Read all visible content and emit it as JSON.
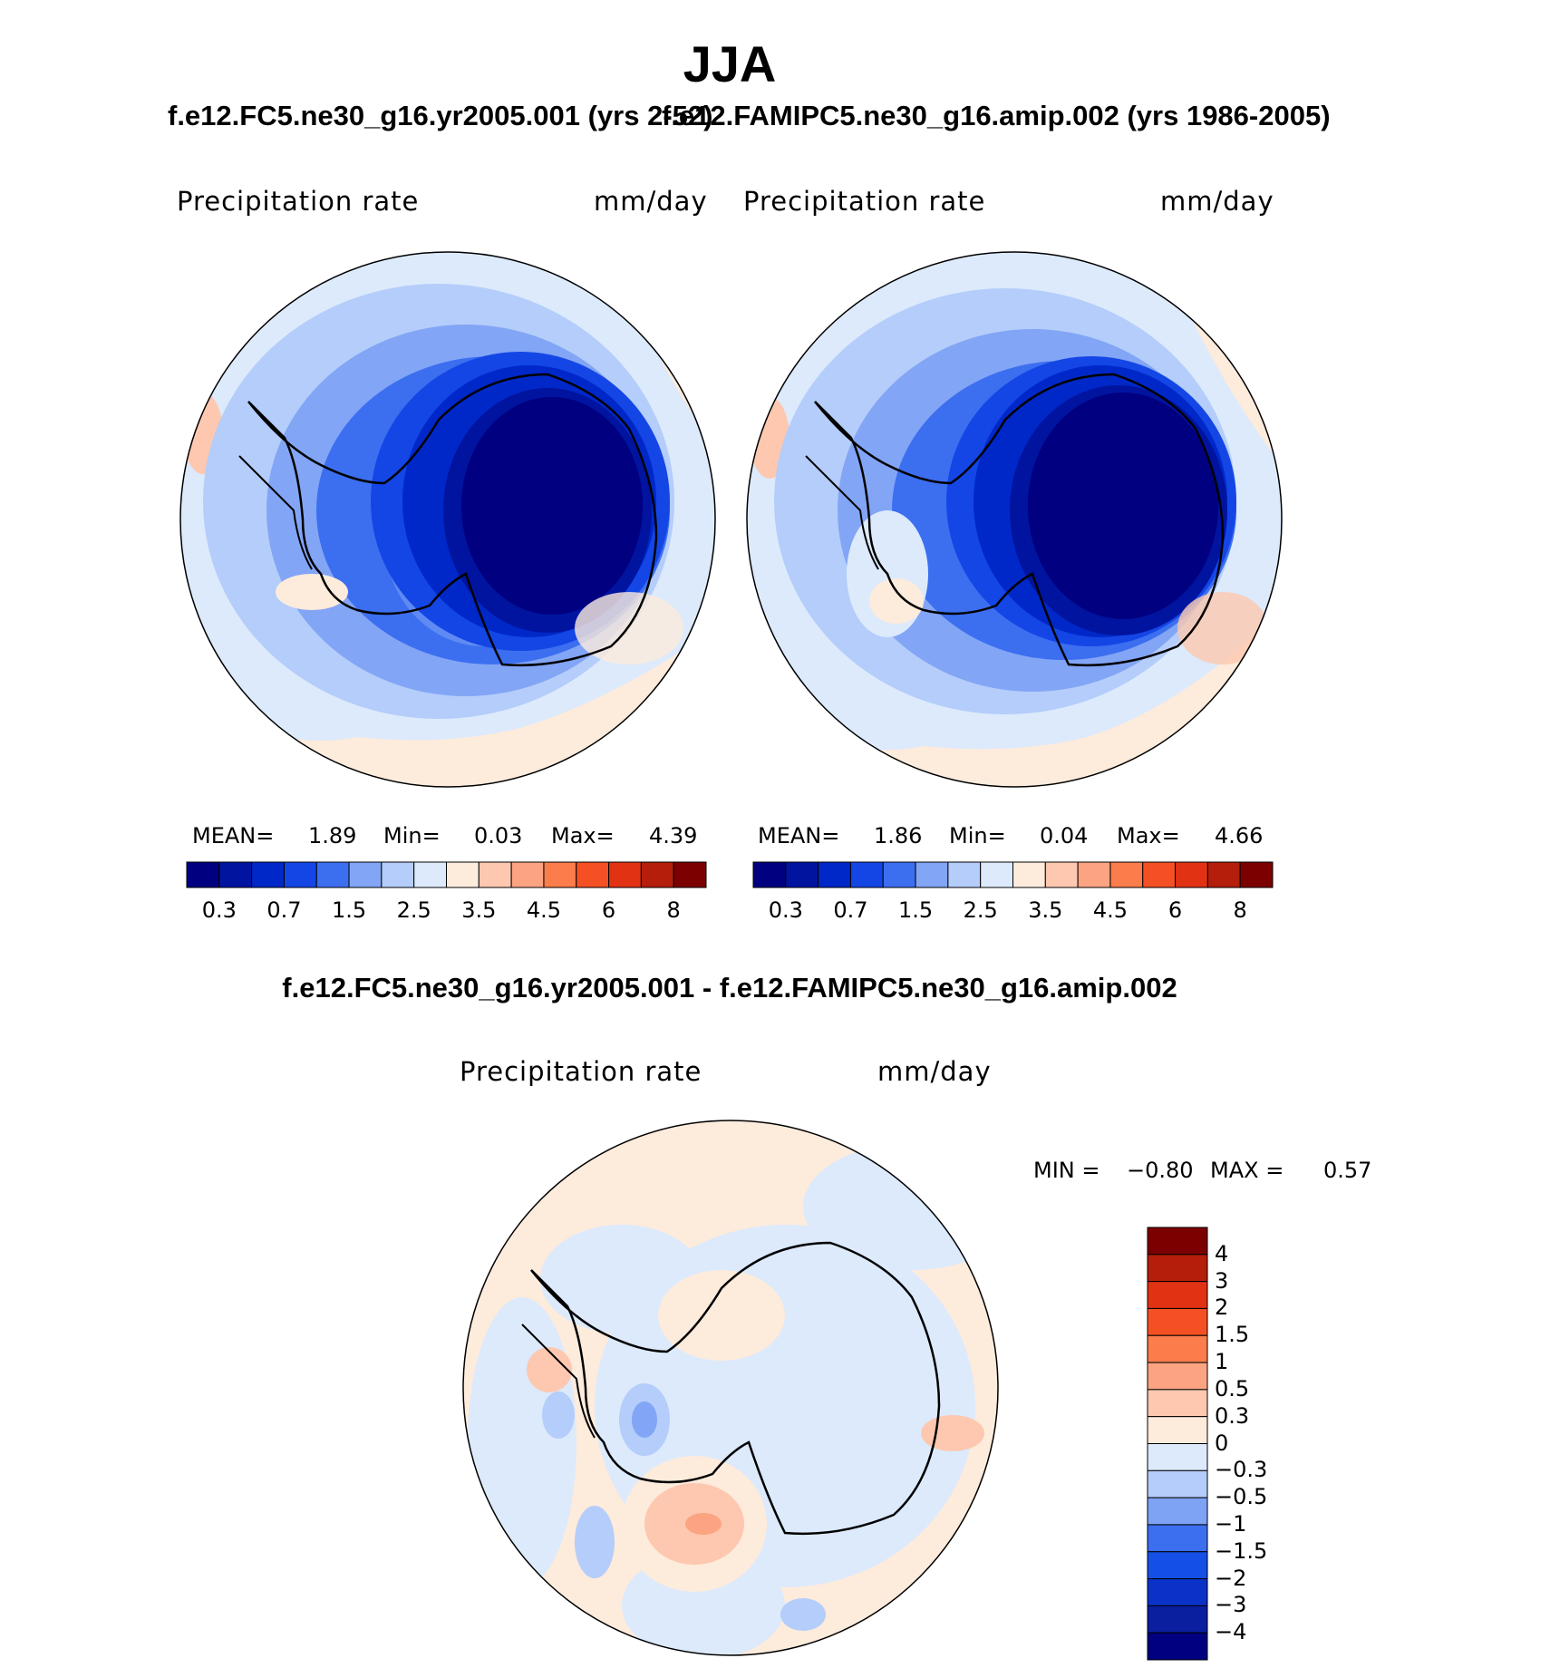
{
  "figure": {
    "title": "JJA",
    "variable": "Precipitation rate",
    "units": "mm/day",
    "coastline_color": "#000000"
  },
  "panels": [
    {
      "id": "test",
      "case_title": "f.e12.FC5.ne30_g16.yr2005.001 (yrs 2-52)",
      "mean_label": "MEAN=",
      "mean": "1.89",
      "min_label": "Min=",
      "min": "0.03",
      "max_label": "Max=",
      "max": "4.39"
    },
    {
      "id": "control",
      "case_title": "f.e12.FAMIPC5.ne30_g16.amip.002 (yrs 1986-2005)",
      "mean_label": "MEAN=",
      "mean": "1.86",
      "min_label": "Min=",
      "min": "0.04",
      "max_label": "Max=",
      "max": "4.66"
    }
  ],
  "difference": {
    "title": "f.e12.FC5.ne30_g16.yr2005.001 - f.e12.FAMIPC5.ne30_g16.amip.002",
    "min_label": "MIN =",
    "min": "−0.80",
    "max_label": "MAX =",
    "max": "0.57"
  },
  "colorbar_main": {
    "colors": [
      "#000080",
      "#0014a0",
      "#0028c8",
      "#1446e6",
      "#3c6ef0",
      "#82a5f5",
      "#b4cdfa",
      "#dceafc",
      "#fdebdc",
      "#fdc8af",
      "#fca482",
      "#fa7d4b",
      "#f55023",
      "#e13214",
      "#b41e0a",
      "#7d0000"
    ],
    "ticks": [
      "0.3",
      "0.7",
      "1.5",
      "2.5",
      "3.5",
      "4.5",
      "6",
      "8"
    ]
  },
  "colorbar_diff": {
    "colors": [
      "#000080",
      "#0a1ea0",
      "#0a32c8",
      "#1450e6",
      "#3c6ef0",
      "#7ea3f5",
      "#b4cdfa",
      "#dceafc",
      "#fdebdc",
      "#fdc8af",
      "#fca482",
      "#fa7d4b",
      "#f55023",
      "#e13214",
      "#b41e0a",
      "#7d0000"
    ],
    "labels": [
      "4",
      "3",
      "2",
      "1.5",
      "1",
      "0.5",
      "0.3",
      "0",
      "−0.3",
      "−0.5",
      "−1",
      "−1.5",
      "−2",
      "−3",
      "−4"
    ]
  }
}
